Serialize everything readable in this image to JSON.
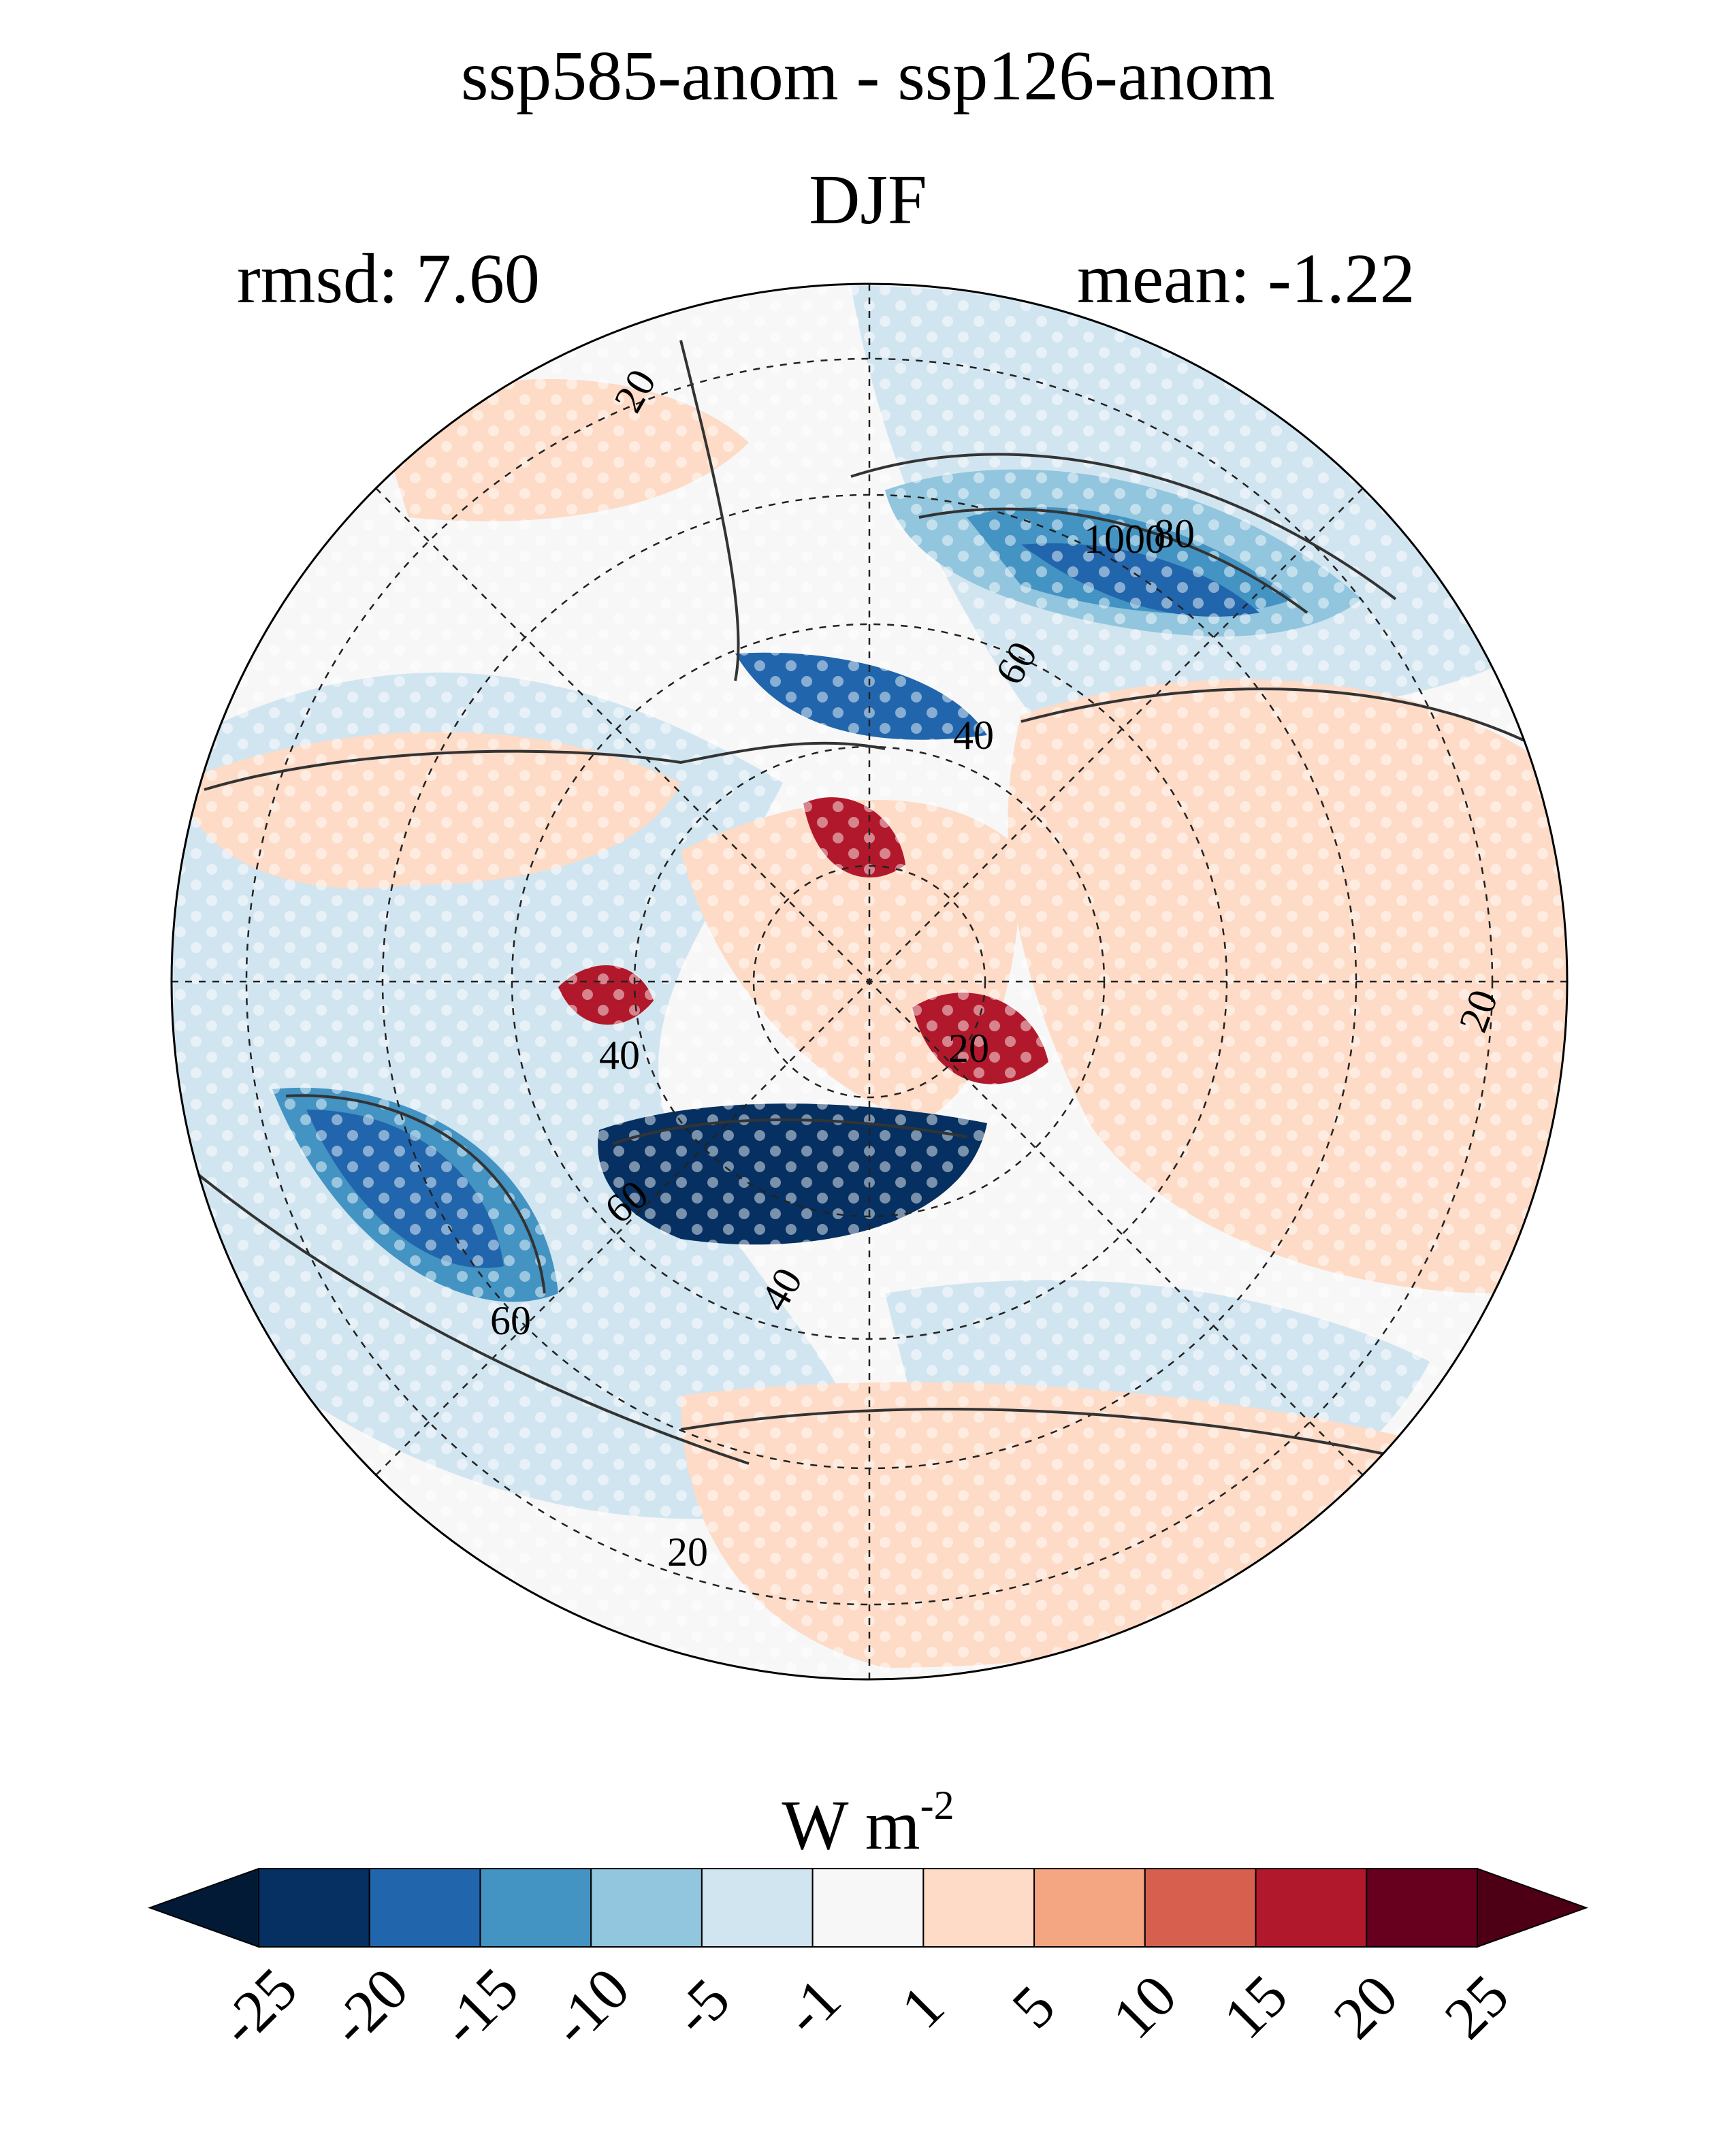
{
  "title": {
    "line1": "ssp585-anom - ssp126-anom",
    "line2": "DJF"
  },
  "stats": {
    "rmsd": "rmsd: 7.60",
    "mean": "mean: -1.22"
  },
  "map": {
    "projection": "north polar stereographic",
    "contour_labels": [
      "20",
      "1000",
      "80",
      "60",
      "40",
      "20",
      "40",
      "60",
      "60",
      "40",
      "20",
      "20"
    ],
    "stippling": "white dots",
    "gridlines": "dashed"
  },
  "colorbar": {
    "units": "W m",
    "units_exponent": "-2",
    "extend": "both",
    "ticks": [
      "-25",
      "-20",
      "-15",
      "-10",
      "-5",
      "-1",
      "1",
      "5",
      "10",
      "15",
      "20",
      "25"
    ],
    "colors": [
      "#053061",
      "#2166ac",
      "#4393c3",
      "#92c5de",
      "#d1e5f0",
      "#f7f7f7",
      "#fddbc7",
      "#f4a582",
      "#d6604d",
      "#b2182b",
      "#67001f"
    ],
    "below_color": "#031a36",
    "above_color": "#4d0015"
  }
}
